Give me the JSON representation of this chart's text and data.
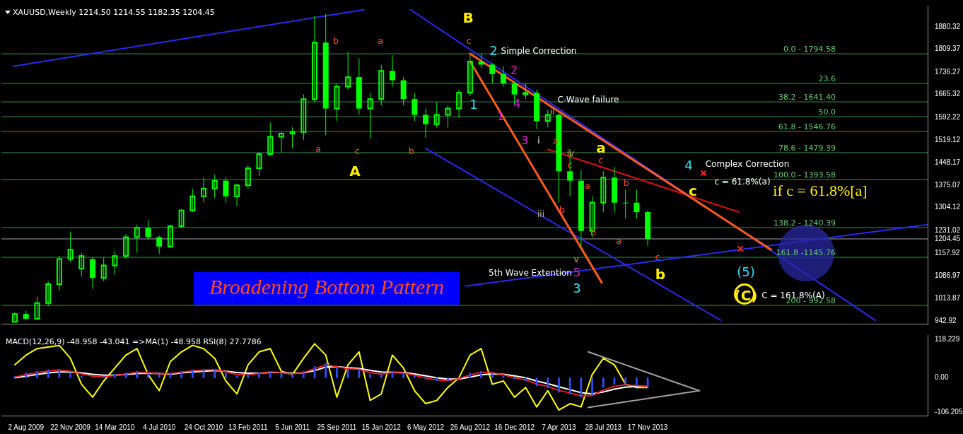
{
  "chart_data": [
    {
      "type": "candlestick",
      "title": "XAUUSD,Weekly  1214.50 1214.55 1182.35 1204.45",
      "color": "#00ff00",
      "x": [
        "2009-07-05",
        "2009-08-02",
        "2009-08-30",
        "2009-09-27",
        "2009-10-25",
        "2009-11-22",
        "2009-12-20",
        "2010-01-17",
        "2010-02-14",
        "2010-03-14",
        "2010-04-11",
        "2010-05-09",
        "2010-06-06",
        "2010-07-04",
        "2010-08-01",
        "2010-08-29",
        "2010-09-26",
        "2010-10-24",
        "2010-11-21",
        "2010-12-19",
        "2011-01-16",
        "2011-02-13",
        "2011-03-13",
        "2011-04-10",
        "2011-05-08",
        "2011-06-05",
        "2011-07-03",
        "2011-07-31",
        "2011-08-28",
        "2011-09-25",
        "2011-10-23",
        "2011-11-20",
        "2011-12-18",
        "2012-01-15",
        "2012-02-12",
        "2012-03-11",
        "2012-04-08",
        "2012-05-06",
        "2012-06-03",
        "2012-07-01",
        "2012-07-29",
        "2012-08-26",
        "2012-09-23",
        "2012-10-21",
        "2012-11-18",
        "2012-12-16",
        "2013-01-13",
        "2013-02-10",
        "2013-03-10",
        "2013-04-07",
        "2013-05-05",
        "2013-06-02",
        "2013-06-30",
        "2013-07-28",
        "2013-08-25",
        "2013-09-22",
        "2013-10-20",
        "2013-11-17"
      ],
      "ohlc": [
        [
          940,
          970,
          937,
          965
        ],
        [
          965,
          975,
          945,
          950
        ],
        [
          950,
          1020,
          948,
          1000
        ],
        [
          1000,
          1070,
          990,
          1060
        ],
        [
          1060,
          1150,
          1040,
          1140
        ],
        [
          1140,
          1226,
          1130,
          1170
        ],
        [
          1110,
          1160,
          1085,
          1150
        ],
        [
          1140,
          1145,
          1045,
          1080
        ],
        [
          1080,
          1145,
          1070,
          1120
        ],
        [
          1120,
          1165,
          1090,
          1150
        ],
        [
          1150,
          1220,
          1140,
          1210
        ],
        [
          1210,
          1250,
          1160,
          1240
        ],
        [
          1240,
          1265,
          1200,
          1210
        ],
        [
          1210,
          1215,
          1157,
          1180
        ],
        [
          1180,
          1250,
          1175,
          1245
        ],
        [
          1245,
          1300,
          1240,
          1295
        ],
        [
          1295,
          1365,
          1290,
          1340
        ],
        [
          1340,
          1400,
          1320,
          1365
        ],
        [
          1365,
          1410,
          1335,
          1390
        ],
        [
          1390,
          1400,
          1320,
          1340
        ],
        [
          1340,
          1380,
          1308,
          1375
        ],
        [
          1375,
          1440,
          1365,
          1430
        ],
        [
          1430,
          1480,
          1405,
          1475
        ],
        [
          1475,
          1575,
          1470,
          1530
        ],
        [
          1530,
          1545,
          1480,
          1540
        ],
        [
          1540,
          1560,
          1495,
          1545
        ],
        [
          1545,
          1665,
          1520,
          1650
        ],
        [
          1650,
          1915,
          1640,
          1830
        ],
        [
          1830,
          1921,
          1535,
          1620
        ],
        [
          1620,
          1700,
          1580,
          1690
        ],
        [
          1690,
          1800,
          1680,
          1720
        ],
        [
          1720,
          1780,
          1600,
          1620
        ],
        [
          1620,
          1670,
          1523,
          1650
        ],
        [
          1650,
          1760,
          1630,
          1740
        ],
        [
          1740,
          1790,
          1690,
          1710
        ],
        [
          1710,
          1720,
          1630,
          1650
        ],
        [
          1650,
          1670,
          1580,
          1600
        ],
        [
          1600,
          1620,
          1527,
          1570
        ],
        [
          1570,
          1640,
          1560,
          1600
        ],
        [
          1600,
          1630,
          1560,
          1620
        ],
        [
          1620,
          1680,
          1590,
          1670
        ],
        [
          1670,
          1790,
          1660,
          1770
        ],
        [
          1770,
          1796,
          1750,
          1760
        ],
        [
          1760,
          1765,
          1700,
          1730
        ],
        [
          1730,
          1755,
          1690,
          1700
        ],
        [
          1700,
          1705,
          1635,
          1665
        ],
        [
          1665,
          1700,
          1650,
          1670
        ],
        [
          1670,
          1680,
          1555,
          1580
        ],
        [
          1580,
          1615,
          1560,
          1600
        ],
        [
          1600,
          1605,
          1320,
          1420
        ],
        [
          1420,
          1490,
          1340,
          1390
        ],
        [
          1390,
          1425,
          1180,
          1230
        ],
        [
          1230,
          1340,
          1210,
          1320
        ],
        [
          1320,
          1420,
          1290,
          1400
        ],
        [
          1400,
          1434,
          1290,
          1320
        ],
        [
          1320,
          1360,
          1270,
          1320
        ],
        [
          1320,
          1361,
          1270,
          1290
        ],
        [
          1290,
          1295,
          1182,
          1204.45
        ]
      ],
      "xlim": [
        "2009-06-01",
        "2015-10-24"
      ],
      "ylim": [
        934,
        1948
      ],
      "yticks": [
        1880.32,
        1809.37,
        1736.27,
        1665.32,
        1592.22,
        1519.12,
        1448.17,
        1375.07,
        1304.12,
        1231.02,
        1204.45,
        1157.92,
        1086.97,
        1013.87,
        942.92
      ],
      "tick_labels": "y",
      "grid": false,
      "legend": false,
      "marker": "none",
      "ref_lines": [
        {
          "axis": "y",
          "value": 1204.45,
          "color": "#a0a0b0"
        },
        {
          "axis": "y",
          "value": 1794.58,
          "color": "#3f8f4f"
        },
        {
          "axis": "y",
          "value": 1700,
          "color": "#3f8f4f"
        },
        {
          "axis": "y",
          "value": 1641.4,
          "color": "#3f8f4f"
        },
        {
          "axis": "y",
          "value": 1594,
          "color": "#3f8f4f"
        },
        {
          "axis": "y",
          "value": 1546.76,
          "color": "#3f8f4f"
        },
        {
          "axis": "y",
          "value": 1479.39,
          "color": "#3f8f4f"
        },
        {
          "axis": "y",
          "value": 1393.58,
          "color": "#3f8f4f"
        },
        {
          "axis": "y",
          "value": 1240.39,
          "color": "#3f8f4f"
        },
        {
          "axis": "y",
          "value": 1145.76,
          "color": "#3f8f4f"
        },
        {
          "axis": "y",
          "value": 992.58,
          "color": "#3f8f4f"
        }
      ],
      "series": [
        {
          "type": "line",
          "color": "#ff5a1e",
          "x": [
            "2012-08-26",
            "2014-09-24"
          ],
          "values": [
            1795,
            1170
          ]
        },
        {
          "type": "line",
          "color": "#ff5a1e",
          "x": [
            "2012-08-26",
            "2013-07-24"
          ],
          "values": [
            1770,
            1065
          ]
        },
        {
          "type": "line",
          "color": "#e01010",
          "x": [
            "2013-03-10",
            "2014-07-05"
          ],
          "values": [
            1490,
            1290
          ]
        },
        {
          "type": "line",
          "color": "#2a2af0",
          "x": [
            "2009-07-01",
            "2011-12-02"
          ],
          "values": [
            1755,
            1935
          ]
        },
        {
          "type": "line",
          "color": "#2a2af0",
          "x": [
            "2012-03-29",
            "2015-06-14"
          ],
          "values": [
            1935,
            945
          ]
        },
        {
          "type": "line",
          "color": "#2a2af0",
          "x": [
            "2012-08-15",
            "2015-10-24"
          ],
          "values": [
            1054,
            1250
          ]
        },
        {
          "type": "line",
          "color": "#2a2af0",
          "x": [
            "2012-05-06",
            "2014-05-20"
          ],
          "values": [
            1493,
            945
          ]
        }
      ],
      "annotations": [
        "B",
        "c",
        "b",
        "a",
        "a",
        "c",
        "b",
        "A",
        "2",
        "Simple Correction",
        "2",
        "1",
        "1",
        "4",
        "C-Wave failure",
        "ii",
        "3",
        "i",
        "a",
        "iv",
        "c",
        "a",
        "c",
        "4",
        "Complex Correction",
        "c = 61.8%(a)",
        "c",
        "if c = 61.8%[a]",
        "a",
        "b",
        "iii",
        "b",
        "b",
        "a",
        "c",
        "v",
        "5th Wave Extention",
        "5",
        "3",
        "b",
        "(5)",
        "(C)",
        "C = 161.8%(A)",
        "Broadening Bottom Pattern",
        {
          "text": "0.0 - 1794.58",
          "x": "2015-03-06",
          "y": 1794.58
        },
        {
          "text": "23.6",
          "x": "2015-03-06",
          "y": 1700
        },
        {
          "text": "38.2 - 1641.40",
          "x": "2015-03-06",
          "y": 1641.4
        },
        {
          "text": "50.0",
          "x": "2015-03-06",
          "y": 1594
        },
        {
          "text": "61.8 - 1546.76",
          "x": "2015-03-06",
          "y": 1546.76
        },
        {
          "text": "78.6 - 1479.39",
          "x": "2015-03-06",
          "y": 1479.39
        },
        {
          "text": "100.0 - 1393.58",
          "x": "2015-03-06",
          "y": 1393.58
        },
        {
          "text": "138.2 - 1240.39",
          "x": "2015-03-06",
          "y": 1240.39
        },
        {
          "text": "161.8 -1145.76",
          "x": "2015-03-06",
          "y": 1145.76
        },
        {
          "text": "200 - 992.58",
          "x": "2015-03-06",
          "y": 992.58
        }
      ]
    },
    {
      "type": "line",
      "title": "MACD(12,26,9) -48.958 -43.041 =>MA(1) -48.958  RSI(8) 27.7786",
      "x": [
        "2009-07-05",
        "2009-08-02",
        "2009-08-30",
        "2009-09-27",
        "2009-10-25",
        "2009-11-22",
        "2009-12-20",
        "2010-01-17",
        "2010-02-14",
        "2010-03-14",
        "2010-04-11",
        "2010-05-09",
        "2010-06-06",
        "2010-07-04",
        "2010-08-01",
        "2010-08-29",
        "2010-09-26",
        "2010-10-24",
        "2010-11-21",
        "2010-12-19",
        "2011-01-16",
        "2011-02-13",
        "2011-03-13",
        "2011-04-10",
        "2011-05-08",
        "2011-06-05",
        "2011-07-03",
        "2011-07-31",
        "2011-08-28",
        "2011-09-25",
        "2011-10-23",
        "2011-11-20",
        "2011-12-18",
        "2012-01-15",
        "2012-02-12",
        "2012-03-11",
        "2012-04-08",
        "2012-05-06",
        "2012-06-03",
        "2012-07-01",
        "2012-07-29",
        "2012-08-26",
        "2012-09-23",
        "2012-10-21",
        "2012-11-18",
        "2012-12-16",
        "2013-01-13",
        "2013-02-10",
        "2013-03-10",
        "2013-04-07",
        "2013-05-05",
        "2013-06-02",
        "2013-06-30",
        "2013-07-28",
        "2013-08-25",
        "2013-09-22",
        "2013-10-20",
        "2013-11-17"
      ],
      "xlim": [
        "2009-06-01",
        "2015-10-24"
      ],
      "ylim": [
        -117,
        132
      ],
      "yticks": [
        118.229,
        {
          "value": 0,
          "label": "0.00"
        },
        -106.205
      ],
      "xticks": [
        {
          "value": "2009-08-02",
          "label": "2 Aug 2009"
        },
        {
          "value": "2009-11-22",
          "label": "22 Nov 2009"
        },
        {
          "value": "2010-03-14",
          "label": "14 Mar 2010"
        },
        {
          "value": "2010-07-04",
          "label": "4 Jul 2010"
        },
        {
          "value": "2010-10-24",
          "label": "24 Oct 2010"
        },
        {
          "value": "2011-02-13",
          "label": "13 Feb 2011"
        },
        {
          "value": "2011-06-05",
          "label": "5 Jun 2011"
        },
        {
          "value": "2011-09-25",
          "label": "25 Sep 2011"
        },
        {
          "value": "2012-01-15",
          "label": "15 Jan 2012"
        },
        {
          "value": "2012-05-06",
          "label": "6 May 2012"
        },
        {
          "value": "2012-08-26",
          "label": "26 Aug 2012"
        },
        {
          "value": "2012-12-16",
          "label": "16 Dec 2012"
        },
        {
          "value": "2013-04-07",
          "label": "7 Apr 2013"
        },
        {
          "value": "2013-07-28",
          "label": "28 Jul 2013"
        },
        {
          "value": "2013-11-17",
          "label": "17 Nov 2013"
        }
      ],
      "grid": false,
      "legend": false,
      "marker": "none",
      "series": [
        {
          "type": "bar",
          "color": "#3050ff",
          "values": [
            5,
            15,
            20,
            25,
            25,
            15,
            5,
            0,
            5,
            10,
            15,
            20,
            15,
            10,
            15,
            20,
            25,
            25,
            25,
            15,
            5,
            10,
            15,
            20,
            15,
            10,
            20,
            35,
            45,
            30,
            25,
            25,
            10,
            10,
            20,
            15,
            5,
            -5,
            -10,
            -10,
            0,
            15,
            20,
            15,
            5,
            -5,
            -10,
            -25,
            -30,
            -45,
            -50,
            -60,
            -55,
            -30,
            -20,
            -20,
            -25,
            -30
          ]
        },
        {
          "type": "line",
          "color": "#ff2020",
          "line_style": "dotted",
          "values": [
            2,
            10,
            16,
            21,
            24,
            20,
            12,
            5,
            3,
            7,
            12,
            17,
            16,
            12,
            13,
            17,
            22,
            24,
            25,
            19,
            10,
            9,
            13,
            18,
            16,
            12,
            16,
            28,
            40,
            34,
            28,
            26,
            16,
            11,
            16,
            15,
            8,
            -1,
            -7,
            -9,
            -3,
            9,
            17,
            16,
            9,
            0,
            -7,
            -19,
            -27,
            -39,
            -47,
            -56,
            -55,
            -38,
            -26,
            -22,
            -24,
            -28
          ]
        },
        {
          "type": "line",
          "color": "#ffffff",
          "values": [
            0,
            5,
            10,
            15,
            18,
            18,
            15,
            11,
            8,
            8,
            10,
            13,
            14,
            13,
            11,
            15,
            18,
            20,
            22,
            20,
            16,
            14,
            14,
            16,
            16,
            14,
            15,
            22,
            33,
            34,
            31,
            29,
            23,
            18,
            17,
            16,
            12,
            6,
            0,
            -4,
            -4,
            2,
            9,
            12,
            11,
            6,
            0,
            -10,
            -18,
            -28,
            -37,
            -46,
            -50,
            -44,
            -35,
            -29,
            -27,
            -27
          ]
        },
        {
          "type": "line",
          "color": "#ffff00",
          "values": [
            40,
            70,
            90,
            95,
            100,
            60,
            -20,
            -60,
            -10,
            30,
            70,
            90,
            10,
            -40,
            50,
            80,
            100,
            90,
            60,
            -10,
            -50,
            40,
            80,
            90,
            20,
            10,
            60,
            105,
            70,
            -60,
            40,
            80,
            -70,
            -50,
            70,
            30,
            -40,
            -80,
            -70,
            -30,
            0,
            70,
            90,
            -20,
            -10,
            -60,
            -30,
            -90,
            -40,
            -100,
            -80,
            -90,
            10,
            60,
            40,
            -20,
            -30,
            -30
          ]
        },
        {
          "type": "line",
          "color": "#a0a0a0",
          "x": [
            "2013-06-20",
            "2014-03-27"
          ],
          "values": [
            80,
            -40
          ]
        },
        {
          "type": "line",
          "color": "#a0a0a0",
          "x": [
            "2013-06-20",
            "2014-03-27"
          ],
          "values": [
            -92,
            -40
          ]
        }
      ]
    }
  ]
}
